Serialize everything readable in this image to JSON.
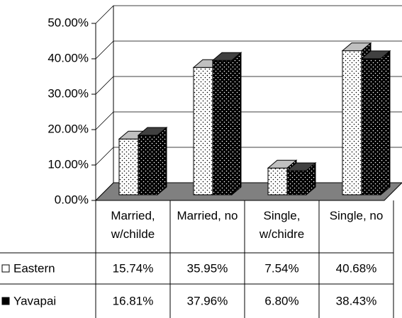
{
  "chart_data": {
    "type": "bar3d",
    "categories": [
      "Married, w/childe",
      "Married, no",
      "Single, w/chidre",
      "Single, no"
    ],
    "series": [
      {
        "name": "Eastern",
        "color": "#ffffff",
        "values": [
          15.74,
          35.95,
          7.54,
          40.68
        ],
        "value_labels": [
          "15.74%",
          "35.95%",
          "7.54%",
          "40.68%"
        ]
      },
      {
        "name": "Yavapai",
        "color": "#000000",
        "values": [
          16.81,
          37.96,
          6.8,
          38.43
        ],
        "value_labels": [
          "16.81%",
          "37.96%",
          "6.80%",
          "38.43%"
        ]
      }
    ],
    "ylim": [
      0,
      50
    ],
    "yticks": [
      {
        "value": 0,
        "label": "0.00%"
      },
      {
        "value": 10,
        "label": "10.00%"
      },
      {
        "value": 20,
        "label": "20.00%"
      },
      {
        "value": 30,
        "label": "30.00%"
      },
      {
        "value": 40,
        "label": "40.00%"
      },
      {
        "value": 50,
        "label": "50.00%"
      }
    ],
    "grid": true,
    "legend": "data-table"
  }
}
